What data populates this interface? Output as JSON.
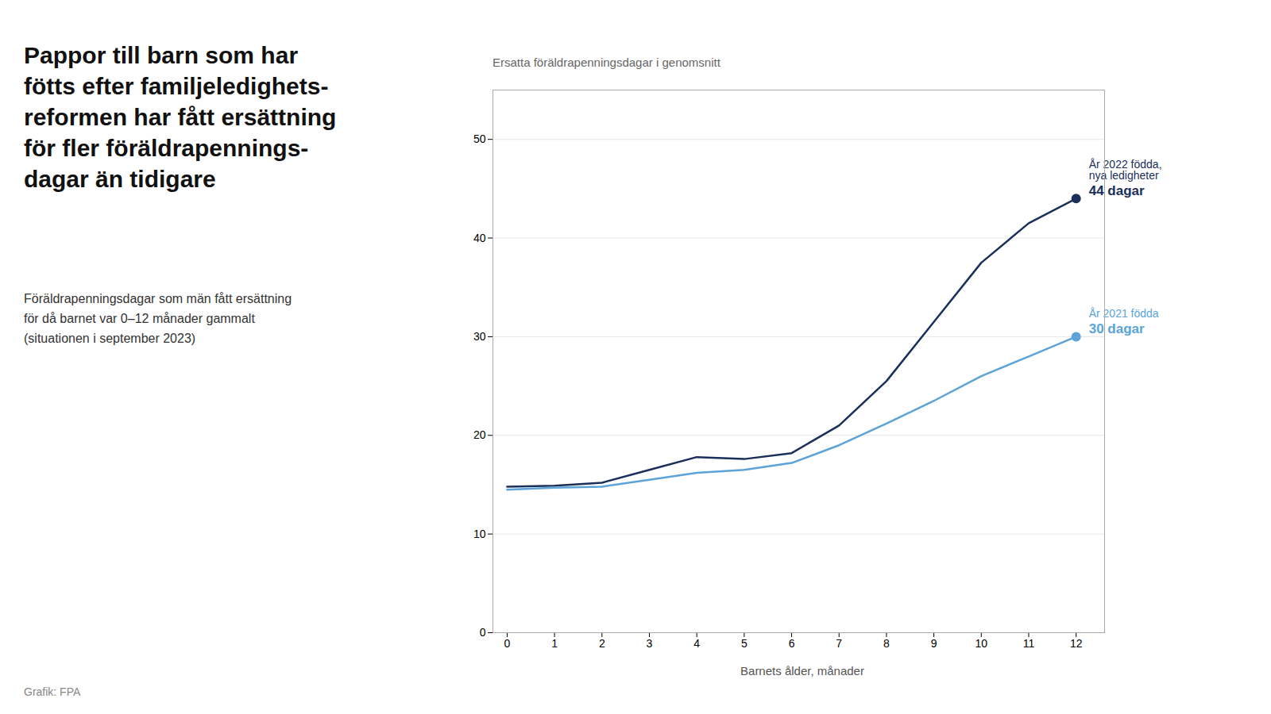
{
  "chart_data": {
    "type": "line",
    "title": "Pappor till barn som har\nfötts efter familjeledighets-\nreformen har fått ersättning\nför fler föräldrapennings-\ndagar än tidigare",
    "subtitle": "Föräldrapenningsdagar som män fått ersättning\nför då barnet var 0–12 månader gammalt\n(situationen i september 2023)",
    "caption": "Grafik: FPA",
    "x_label": "Barnets ålder, månader",
    "y_label": "Ersatta föräldrapenningsdagar i genomsnitt",
    "x": [
      0,
      1,
      2,
      3,
      4,
      5,
      6,
      7,
      8,
      9,
      10,
      11,
      12
    ],
    "series": [
      {
        "name": "År 2022 födda,\nnya ledigheter",
        "color": "#1a2f5a",
        "values": [
          14.8,
          14.9,
          15.2,
          16.5,
          17.8,
          17.6,
          18.2,
          21.0,
          25.5,
          31.5,
          37.5,
          41.5,
          44.0
        ]
      },
      {
        "name": "År 2021 födda",
        "color": "#5ba3d9",
        "values": [
          14.5,
          14.7,
          14.8,
          15.5,
          16.2,
          16.5,
          17.2,
          19.0,
          21.2,
          23.5,
          26.0,
          28.0,
          30.0
        ]
      }
    ],
    "annotations": [
      {
        "text": "44 dagar",
        "x": 12,
        "y": 44.0,
        "color": "#1a2f5a"
      },
      {
        "text": "30 dagar",
        "x": 12,
        "y": 30.0,
        "color": "#5ba3d9"
      }
    ],
    "xlim": [
      -0.3,
      12.6
    ],
    "xticks": [
      0,
      1,
      2,
      3,
      4,
      5,
      6,
      7,
      8,
      9,
      10,
      11,
      12
    ],
    "ylim": [
      0,
      55
    ],
    "yticks": [
      0,
      10,
      20,
      30,
      40,
      50
    ],
    "grid": true
  }
}
